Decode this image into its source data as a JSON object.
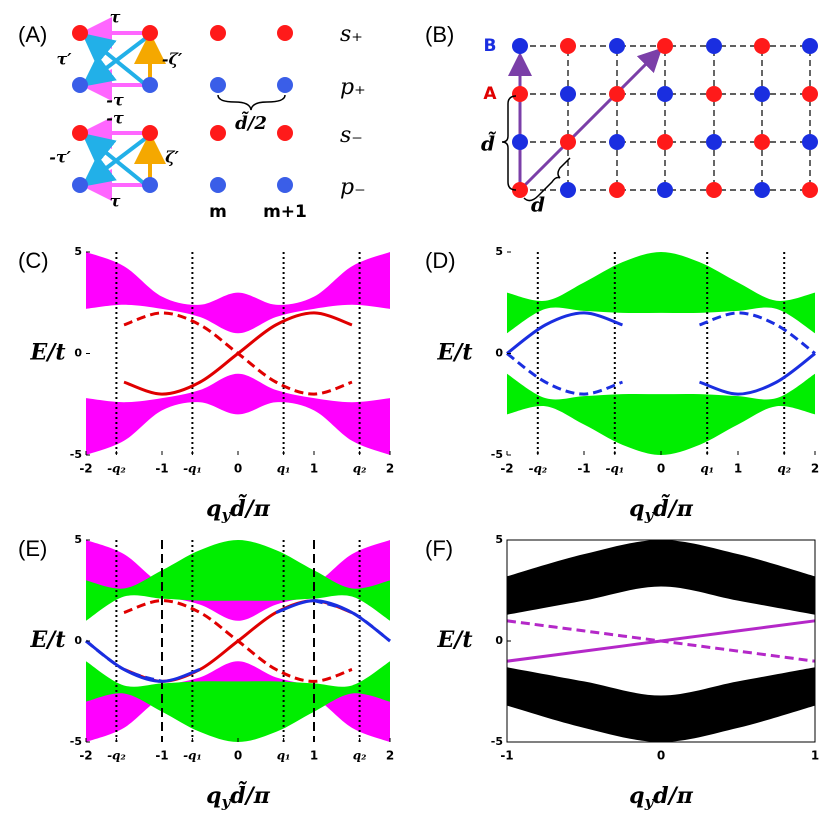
{
  "panel_a": {
    "label": "(A)",
    "hoppings": [
      "τ",
      "τ′",
      "-ζ′",
      "-τ",
      "-τ",
      "-τ′",
      "ζ′",
      "τ"
    ],
    "orbitals": [
      "s₊",
      "p₊",
      "s₋",
      "p₋"
    ],
    "spacing": "d̃/2",
    "sites": [
      "m",
      "m+1"
    ]
  },
  "panel_b": {
    "label": "(B)",
    "sublattices": [
      "B",
      "A"
    ],
    "lengths": [
      "d̃",
      "d"
    ]
  },
  "chart_data": [
    {
      "type": "band",
      "title": "(C)",
      "ylabel": "E/t",
      "xlabel": {
        "base": "q",
        "sub": "y",
        "rest": "d̃/π"
      },
      "x": [
        -2,
        -1.5,
        -1,
        -0.5,
        0,
        0.5,
        1,
        1.5,
        2
      ],
      "xlim": [
        -2,
        2
      ],
      "ylim": [
        -5,
        5
      ],
      "xticks": [
        -2,
        {
          "value": -1.6,
          "label": "-q₂"
        },
        -1,
        {
          "value": -0.6,
          "label": "-q₁"
        },
        0,
        {
          "value": 0.6,
          "label": "q₁"
        },
        1,
        {
          "value": 1.6,
          "label": "q₂"
        },
        2
      ],
      "yticks": [
        -5,
        0,
        5
      ],
      "frame": false,
      "vlines": [
        {
          "x": -1.6,
          "style": "dotted"
        },
        {
          "x": -0.6,
          "style": "dotted"
        },
        {
          "x": 0.6,
          "style": "dotted"
        },
        {
          "x": 1.6,
          "style": "dotted"
        }
      ],
      "bands": [
        {
          "color": "#ff00ff",
          "low": [
            2.2,
            2.4,
            2.2,
            1.8,
            1.0,
            1.8,
            2.2,
            2.4,
            2.2
          ],
          "high": [
            5.0,
            4.3,
            2.8,
            2.4,
            3.0,
            2.4,
            2.8,
            4.3,
            5.0
          ]
        },
        {
          "color": "#ff00ff",
          "low": [
            -5.0,
            -4.3,
            -2.8,
            -2.4,
            -3.0,
            -2.4,
            -2.8,
            -4.3,
            -5.0
          ],
          "high": [
            -2.2,
            -2.4,
            -2.2,
            -1.8,
            -1.0,
            -1.8,
            -2.2,
            -2.4,
            -2.2
          ]
        }
      ],
      "series": [
        {
          "color": "#e00000",
          "style": "solid",
          "values": [
            null,
            -1.41,
            -2,
            -1.41,
            0,
            1.41,
            2,
            1.41,
            null
          ]
        },
        {
          "color": "#e00000",
          "style": "dashed",
          "values": [
            null,
            1.41,
            2,
            1.41,
            0,
            -1.41,
            -2,
            -1.41,
            null
          ]
        }
      ]
    },
    {
      "type": "band",
      "title": "(D)",
      "ylabel": "E/t",
      "xlabel": {
        "base": "q",
        "sub": "y",
        "rest": "d̃/π"
      },
      "x": [
        -2,
        -1.5,
        -1,
        -0.5,
        0,
        0.5,
        1,
        1.5,
        2
      ],
      "xlim": [
        -2,
        2
      ],
      "ylim": [
        -5,
        5
      ],
      "xticks": [
        -2,
        {
          "value": -1.6,
          "label": "-q₂"
        },
        -1,
        {
          "value": -0.6,
          "label": "-q₁"
        },
        0,
        {
          "value": 0.6,
          "label": "q₁"
        },
        1,
        {
          "value": 1.6,
          "label": "q₂"
        },
        2
      ],
      "yticks": [
        -5,
        0,
        5
      ],
      "frame": false,
      "vlines": [
        {
          "x": -1.6,
          "style": "dotted"
        },
        {
          "x": -0.6,
          "style": "dotted"
        },
        {
          "x": 0.6,
          "style": "dotted"
        },
        {
          "x": 1.6,
          "style": "dotted"
        }
      ],
      "bands": [
        {
          "color": "#00ee00",
          "low": [
            1.0,
            2.2,
            2.1,
            2.0,
            2.0,
            2.0,
            2.1,
            2.2,
            1.0
          ],
          "high": [
            3.0,
            2.6,
            3.5,
            4.5,
            5.0,
            4.5,
            3.5,
            2.6,
            3.0
          ]
        },
        {
          "color": "#00ee00",
          "low": [
            -3.0,
            -2.6,
            -3.5,
            -4.5,
            -5.0,
            -4.5,
            -3.5,
            -2.6,
            -3.0
          ],
          "high": [
            -1.0,
            -2.2,
            -2.1,
            -2.0,
            -2.0,
            -2.0,
            -2.1,
            -2.2,
            -1.0
          ]
        }
      ],
      "series": [
        {
          "color": "#1a2ee0",
          "style": "solid",
          "values": [
            0,
            1.41,
            2,
            1.41,
            null,
            -1.41,
            -2,
            -1.41,
            0
          ]
        },
        {
          "color": "#1a2ee0",
          "style": "dashed",
          "values": [
            0,
            -1.41,
            -2,
            -1.41,
            null,
            1.41,
            2,
            1.41,
            0
          ]
        }
      ]
    },
    {
      "type": "band",
      "title": "(E)",
      "ylabel": "E/t",
      "xlabel": {
        "base": "q",
        "sub": "y",
        "rest": "d̃/π"
      },
      "x": [
        -2,
        -1.5,
        -1,
        -0.5,
        0,
        0.5,
        1,
        1.5,
        2
      ],
      "xlim": [
        -2,
        2
      ],
      "ylim": [
        -5,
        5
      ],
      "xticks": [
        -2,
        {
          "value": -1.6,
          "label": "-q₂"
        },
        -1,
        {
          "value": -0.6,
          "label": "-q₁"
        },
        0,
        {
          "value": 0.6,
          "label": "q₁"
        },
        1,
        {
          "value": 1.6,
          "label": "q₂"
        },
        2
      ],
      "yticks": [
        -5,
        0,
        5
      ],
      "frame": false,
      "vlines": [
        {
          "x": -1.6,
          "style": "dotted"
        },
        {
          "x": -1,
          "style": "dashed"
        },
        {
          "x": -0.6,
          "style": "dotted"
        },
        {
          "x": 0.6,
          "style": "dotted"
        },
        {
          "x": 1,
          "style": "dashed"
        },
        {
          "x": 1.6,
          "style": "dotted"
        }
      ],
      "bands": [
        {
          "color": "#ff00ff",
          "low": [
            2.2,
            2.4,
            2.2,
            1.8,
            1.0,
            1.8,
            2.2,
            2.4,
            2.2
          ],
          "high": [
            5.0,
            4.3,
            2.8,
            2.4,
            3.0,
            2.4,
            2.8,
            4.3,
            5.0
          ]
        },
        {
          "color": "#ff00ff",
          "low": [
            -5.0,
            -4.3,
            -2.8,
            -2.4,
            -3.0,
            -2.4,
            -2.8,
            -4.3,
            -5.0
          ],
          "high": [
            -2.2,
            -2.4,
            -2.2,
            -1.8,
            -1.0,
            -1.8,
            -2.2,
            -2.4,
            -2.2
          ]
        },
        {
          "color": "#00ee00",
          "low": [
            1.0,
            2.2,
            2.1,
            2.0,
            2.0,
            2.0,
            2.1,
            2.2,
            1.0
          ],
          "high": [
            3.0,
            2.6,
            3.5,
            4.5,
            5.0,
            4.5,
            3.5,
            2.6,
            3.0
          ]
        },
        {
          "color": "#00ee00",
          "low": [
            -3.0,
            -2.6,
            -3.5,
            -4.5,
            -5.0,
            -4.5,
            -3.5,
            -2.6,
            -3.0
          ],
          "high": [
            -1.0,
            -2.2,
            -2.1,
            -2.0,
            -2.0,
            -2.0,
            -2.1,
            -2.2,
            -1.0
          ]
        }
      ],
      "series": [
        {
          "color": "#e00000",
          "style": "solid",
          "values": [
            null,
            -1.41,
            -2,
            -1.41,
            0,
            1.41,
            2,
            1.41,
            null
          ]
        },
        {
          "color": "#e00000",
          "style": "dashed",
          "values": [
            null,
            1.41,
            2,
            1.41,
            0,
            -1.41,
            -2,
            -1.41,
            null
          ]
        },
        {
          "color": "#1a2ee0",
          "style": "solid",
          "values": [
            0,
            -1.41,
            -2,
            -1.41,
            null,
            1.41,
            2,
            1.41,
            0
          ]
        },
        {
          "color": "#1a2ee0",
          "style": "dashed",
          "values": [
            0,
            -1.41,
            -2,
            null,
            null,
            null,
            2,
            1.41,
            0
          ]
        }
      ]
    },
    {
      "type": "band",
      "title": "(F)",
      "ylabel": "E/t",
      "xlabel": {
        "base": "q",
        "sub": "y",
        "rest": "d/π"
      },
      "x": [
        -1,
        -0.5,
        0,
        0.5,
        1
      ],
      "xlim": [
        -1,
        1
      ],
      "ylim": [
        -5,
        5
      ],
      "xticks": [
        -1,
        0,
        1
      ],
      "yticks": [
        -5,
        0,
        5
      ],
      "frame": true,
      "vlines": [],
      "bands": [
        {
          "color": "#000000",
          "low": [
            1.3,
            2.0,
            2.7,
            2.0,
            1.3
          ],
          "high": [
            3.2,
            4.3,
            5.0,
            4.3,
            3.2
          ]
        },
        {
          "color": "#000000",
          "low": [
            -3.2,
            -4.3,
            -5.0,
            -4.3,
            -3.2
          ],
          "high": [
            -1.3,
            -2.0,
            -2.7,
            -2.0,
            -1.3
          ]
        }
      ],
      "series": [
        {
          "color": "#b428c8",
          "style": "solid",
          "values": [
            -1,
            -0.5,
            0,
            0.5,
            1
          ]
        },
        {
          "color": "#b428c8",
          "style": "dashed",
          "values": [
            1,
            0.5,
            0,
            -0.5,
            -1
          ]
        }
      ]
    }
  ]
}
